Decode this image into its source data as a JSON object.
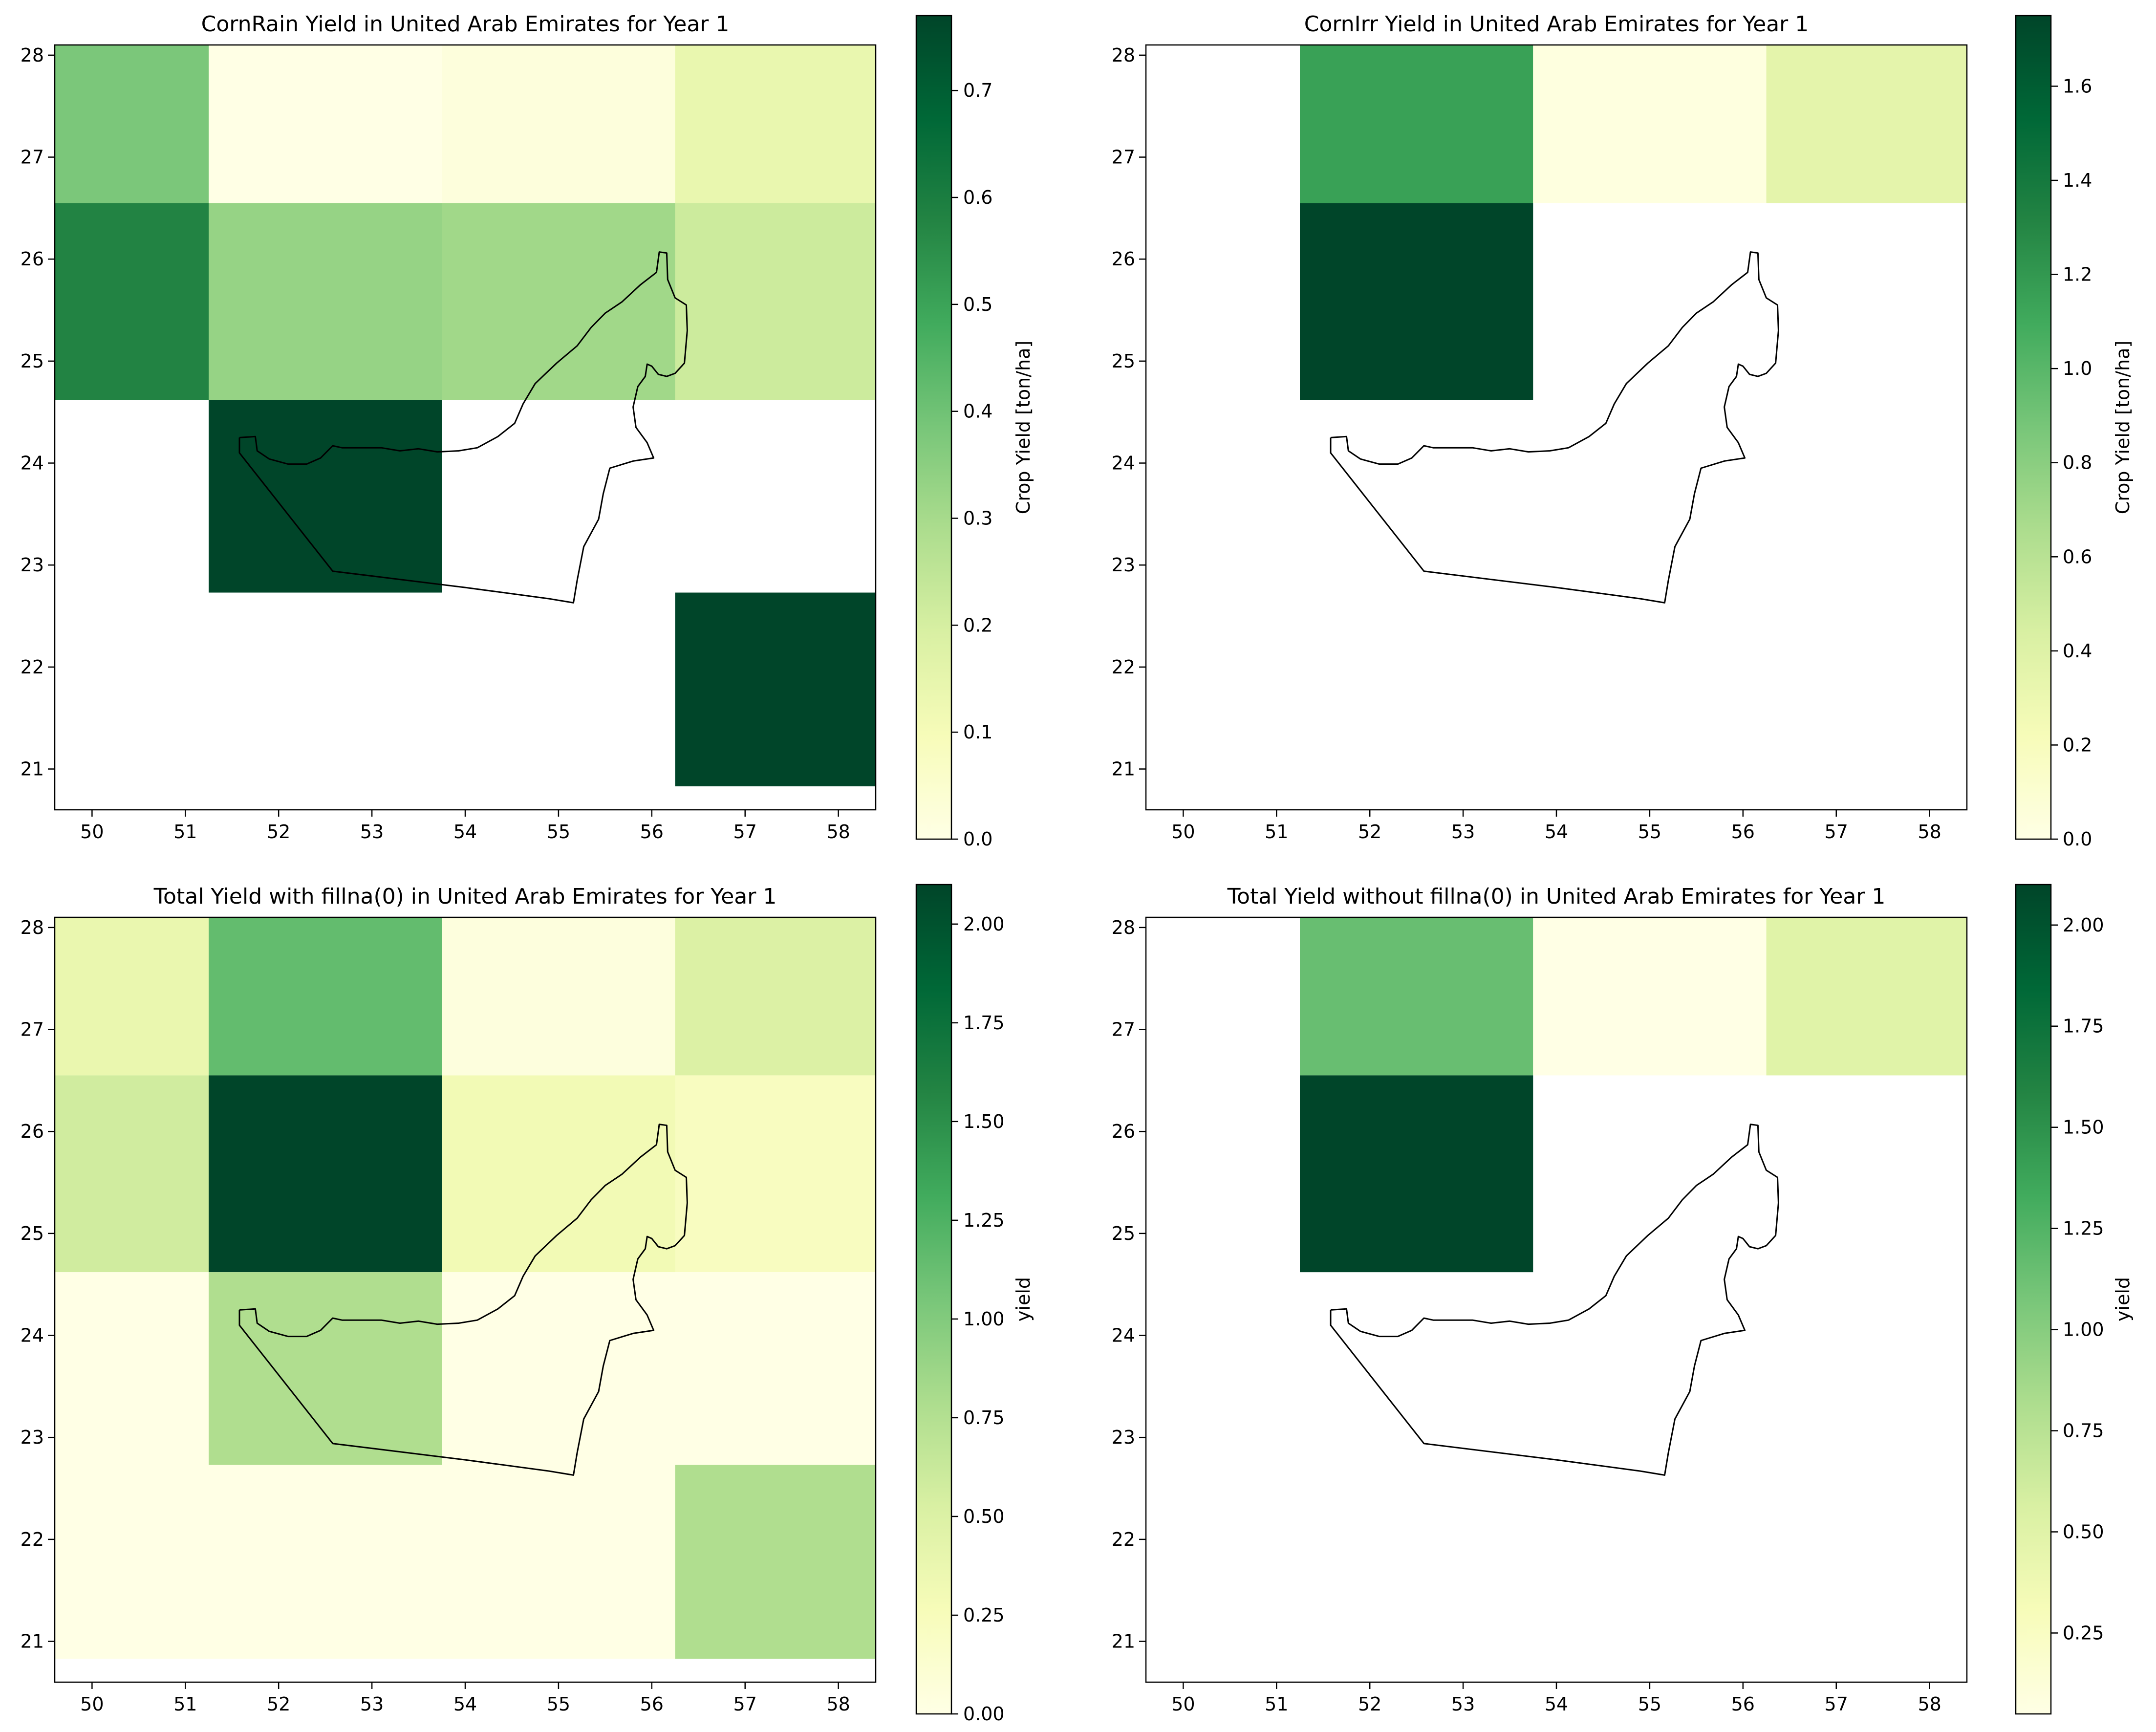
{
  "figure": {
    "panels": [
      {
        "title": "CornRain Yield in United Arab Emirates for Year 1",
        "colorbar_label": "Crop Yield [ton/ha]"
      },
      {
        "title": "CornIrr Yield in United Arab Emirates for Year 1",
        "colorbar_label": "Crop Yield [ton/ha]"
      },
      {
        "title": "Total Yield with fillna(0) in United Arab Emirates for Year 1",
        "colorbar_label": "yield"
      },
      {
        "title": "Total Yield without fillna(0) in United Arab Emirates for Year 1",
        "colorbar_label": "yield"
      }
    ]
  },
  "chart_data": [
    {
      "type": "heatmap",
      "title": "CornRain Yield in United Arab Emirates for Year 1",
      "xlabel": "",
      "ylabel": "",
      "colorbar_label": "Crop Yield [ton/ha]",
      "colormap": "YlGn",
      "xlim": [
        49.6,
        58.4
      ],
      "ylim": [
        20.6,
        28.1
      ],
      "x_ticks": [
        50,
        51,
        52,
        53,
        54,
        55,
        56,
        57,
        58
      ],
      "y_ticks": [
        21,
        22,
        23,
        24,
        25,
        26,
        27,
        28
      ],
      "cbar_range": [
        0,
        0.77
      ],
      "cbar_ticks": [
        "0.0",
        "0.1",
        "0.2",
        "0.3",
        "0.4",
        "0.5",
        "0.6",
        "0.7"
      ],
      "cbar_tick_values": [
        0,
        0.1,
        0.2,
        0.3,
        0.4,
        0.5,
        0.6,
        0.7
      ],
      "cells": [
        {
          "x0": 49.6,
          "x1": 51.25,
          "y0": 26.55,
          "y1": 28.1,
          "value": 0.38
        },
        {
          "x0": 51.25,
          "x1": 53.75,
          "y0": 26.55,
          "y1": 28.1,
          "value": 0.0
        },
        {
          "x0": 53.75,
          "x1": 56.25,
          "y0": 26.55,
          "y1": 28.1,
          "value": 0.02
        },
        {
          "x0": 56.25,
          "x1": 58.4,
          "y0": 26.55,
          "y1": 28.1,
          "value": 0.14
        },
        {
          "x0": 49.6,
          "x1": 51.25,
          "y0": 24.62,
          "y1": 26.55,
          "value": 0.58
        },
        {
          "x0": 51.25,
          "x1": 53.75,
          "y0": 24.62,
          "y1": 26.55,
          "value": 0.33
        },
        {
          "x0": 53.75,
          "x1": 56.25,
          "y0": 24.62,
          "y1": 26.55,
          "value": 0.31
        },
        {
          "x0": 56.25,
          "x1": 58.4,
          "y0": 24.62,
          "y1": 26.55,
          "value": 0.22
        },
        {
          "x0": 51.25,
          "x1": 53.75,
          "y0": 22.73,
          "y1": 24.62,
          "value": 0.77
        },
        {
          "x0": 56.25,
          "x1": 58.4,
          "y0": 20.83,
          "y1": 22.73,
          "value": 0.77
        }
      ]
    },
    {
      "type": "heatmap",
      "title": "CornIrr Yield in United Arab Emirates for Year 1",
      "xlabel": "",
      "ylabel": "",
      "colorbar_label": "Crop Yield [ton/ha]",
      "colormap": "YlGn",
      "xlim": [
        49.6,
        58.4
      ],
      "ylim": [
        20.6,
        28.1
      ],
      "x_ticks": [
        50,
        51,
        52,
        53,
        54,
        55,
        56,
        57,
        58
      ],
      "y_ticks": [
        21,
        22,
        23,
        24,
        25,
        26,
        27,
        28
      ],
      "cbar_range": [
        0,
        1.75
      ],
      "cbar_ticks": [
        "0.0",
        "0.2",
        "0.4",
        "0.6",
        "0.8",
        "1.0",
        "1.2",
        "1.4",
        "1.6"
      ],
      "cbar_tick_values": [
        0,
        0.2,
        0.4,
        0.6,
        0.8,
        1.0,
        1.2,
        1.4,
        1.6
      ],
      "cells": [
        {
          "x0": 51.25,
          "x1": 53.75,
          "y0": 26.55,
          "y1": 28.1,
          "value": 1.15
        },
        {
          "x0": 53.75,
          "x1": 56.25,
          "y0": 26.55,
          "y1": 28.1,
          "value": 0.03
        },
        {
          "x0": 56.25,
          "x1": 58.4,
          "y0": 26.55,
          "y1": 28.1,
          "value": 0.36
        },
        {
          "x0": 51.25,
          "x1": 53.75,
          "y0": 24.62,
          "y1": 26.55,
          "value": 1.75
        }
      ]
    },
    {
      "type": "heatmap",
      "title": "Total Yield with fillna(0) in United Arab Emirates for Year 1",
      "xlabel": "",
      "ylabel": "",
      "colorbar_label": "yield",
      "colormap": "YlGn",
      "xlim": [
        49.6,
        58.4
      ],
      "ylim": [
        20.6,
        28.1
      ],
      "x_ticks": [
        50,
        51,
        52,
        53,
        54,
        55,
        56,
        57,
        58
      ],
      "y_ticks": [
        21,
        22,
        23,
        24,
        25,
        26,
        27,
        28
      ],
      "cbar_range": [
        0,
        2.1
      ],
      "cbar_ticks": [
        "0.00",
        "0.25",
        "0.50",
        "0.75",
        "1.00",
        "1.25",
        "1.50",
        "1.75",
        "2.00"
      ],
      "cbar_tick_values": [
        0,
        0.25,
        0.5,
        0.75,
        1.0,
        1.25,
        1.5,
        1.75,
        2.0
      ],
      "cells": [
        {
          "x0": 49.6,
          "x1": 51.25,
          "y0": 26.55,
          "y1": 28.1,
          "value": 0.38
        },
        {
          "x0": 51.25,
          "x1": 53.75,
          "y0": 26.55,
          "y1": 28.1,
          "value": 1.15
        },
        {
          "x0": 53.75,
          "x1": 56.25,
          "y0": 26.55,
          "y1": 28.1,
          "value": 0.05
        },
        {
          "x0": 56.25,
          "x1": 58.4,
          "y0": 26.55,
          "y1": 28.1,
          "value": 0.5
        },
        {
          "x0": 49.6,
          "x1": 51.25,
          "y0": 24.62,
          "y1": 26.55,
          "value": 0.58
        },
        {
          "x0": 51.25,
          "x1": 53.75,
          "y0": 24.62,
          "y1": 26.55,
          "value": 2.1
        },
        {
          "x0": 53.75,
          "x1": 56.25,
          "y0": 24.62,
          "y1": 26.55,
          "value": 0.31
        },
        {
          "x0": 56.25,
          "x1": 58.4,
          "y0": 24.62,
          "y1": 26.55,
          "value": 0.22
        },
        {
          "x0": 49.6,
          "x1": 51.25,
          "y0": 22.73,
          "y1": 24.62,
          "value": 0.0
        },
        {
          "x0": 51.25,
          "x1": 53.75,
          "y0": 22.73,
          "y1": 24.62,
          "value": 0.77
        },
        {
          "x0": 53.75,
          "x1": 56.25,
          "y0": 22.73,
          "y1": 24.62,
          "value": 0.0
        },
        {
          "x0": 56.25,
          "x1": 58.4,
          "y0": 22.73,
          "y1": 24.62,
          "value": 0.0
        },
        {
          "x0": 49.6,
          "x1": 51.25,
          "y0": 20.83,
          "y1": 22.73,
          "value": 0.0
        },
        {
          "x0": 51.25,
          "x1": 53.75,
          "y0": 20.83,
          "y1": 22.73,
          "value": 0.0
        },
        {
          "x0": 53.75,
          "x1": 56.25,
          "y0": 20.83,
          "y1": 22.73,
          "value": 0.0
        },
        {
          "x0": 56.25,
          "x1": 58.4,
          "y0": 20.83,
          "y1": 22.73,
          "value": 0.77
        }
      ]
    },
    {
      "type": "heatmap",
      "title": "Total Yield without fillna(0) in United Arab Emirates for Year 1",
      "xlabel": "",
      "ylabel": "",
      "colorbar_label": "yield",
      "colormap": "YlGn",
      "xlim": [
        49.6,
        58.4
      ],
      "ylim": [
        20.6,
        28.1
      ],
      "x_ticks": [
        50,
        51,
        52,
        53,
        54,
        55,
        56,
        57,
        58
      ],
      "y_ticks": [
        21,
        22,
        23,
        24,
        25,
        26,
        27,
        28
      ],
      "cbar_range": [
        0.05,
        2.1
      ],
      "cbar_ticks": [
        "0.25",
        "0.50",
        "0.75",
        "1.00",
        "1.25",
        "1.50",
        "1.75",
        "2.00"
      ],
      "cbar_tick_values": [
        0.25,
        0.5,
        0.75,
        1.0,
        1.25,
        1.5,
        1.75,
        2.0
      ],
      "cells": [
        {
          "x0": 51.25,
          "x1": 53.75,
          "y0": 26.55,
          "y1": 28.1,
          "value": 1.15
        },
        {
          "x0": 53.75,
          "x1": 56.25,
          "y0": 26.55,
          "y1": 28.1,
          "value": 0.05
        },
        {
          "x0": 56.25,
          "x1": 58.4,
          "y0": 26.55,
          "y1": 28.1,
          "value": 0.5
        },
        {
          "x0": 51.25,
          "x1": 53.75,
          "y0": 24.62,
          "y1": 26.55,
          "value": 2.1
        }
      ]
    }
  ],
  "uae_outline": [
    [
      51.58,
      24.25
    ],
    [
      51.75,
      24.26
    ],
    [
      51.77,
      24.12
    ],
    [
      51.9,
      24.04
    ],
    [
      52.1,
      23.99
    ],
    [
      52.3,
      23.99
    ],
    [
      52.45,
      24.05
    ],
    [
      52.58,
      24.17
    ],
    [
      52.68,
      24.15
    ],
    [
      52.9,
      24.15
    ],
    [
      53.1,
      24.15
    ],
    [
      53.3,
      24.12
    ],
    [
      53.5,
      24.14
    ],
    [
      53.7,
      24.11
    ],
    [
      53.93,
      24.12
    ],
    [
      54.13,
      24.15
    ],
    [
      54.35,
      24.26
    ],
    [
      54.53,
      24.39
    ],
    [
      54.62,
      24.58
    ],
    [
      54.75,
      24.78
    ],
    [
      54.98,
      24.98
    ],
    [
      55.2,
      25.15
    ],
    [
      55.35,
      25.33
    ],
    [
      55.5,
      25.47
    ],
    [
      55.68,
      25.58
    ],
    [
      55.88,
      25.75
    ],
    [
      56.05,
      25.87
    ],
    [
      56.08,
      26.07
    ],
    [
      56.16,
      26.06
    ],
    [
      56.17,
      25.8
    ],
    [
      56.25,
      25.62
    ],
    [
      56.37,
      25.55
    ],
    [
      56.38,
      25.3
    ],
    [
      56.35,
      24.98
    ],
    [
      56.25,
      24.88
    ],
    [
      56.16,
      24.85
    ],
    [
      56.07,
      24.87
    ],
    [
      56.0,
      24.95
    ],
    [
      55.95,
      24.97
    ],
    [
      55.93,
      24.85
    ],
    [
      55.85,
      24.75
    ],
    [
      55.8,
      24.55
    ],
    [
      55.83,
      24.35
    ],
    [
      55.95,
      24.2
    ],
    [
      56.02,
      24.05
    ],
    [
      55.8,
      24.02
    ],
    [
      55.55,
      23.95
    ],
    [
      55.48,
      23.7
    ],
    [
      55.43,
      23.45
    ],
    [
      55.27,
      23.18
    ],
    [
      55.2,
      22.85
    ],
    [
      55.16,
      22.63
    ],
    [
      54.9,
      22.67
    ],
    [
      54.0,
      22.78
    ],
    [
      52.58,
      22.94
    ],
    [
      51.58,
      24.1
    ],
    [
      51.58,
      24.25
    ]
  ]
}
